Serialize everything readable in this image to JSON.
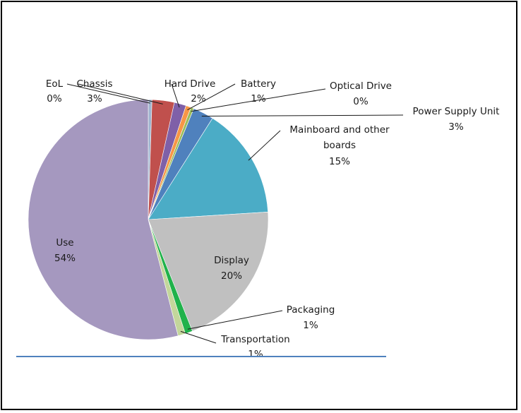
{
  "chart_data": {
    "type": "pie",
    "title": "",
    "slices": [
      {
        "name": "EoL",
        "value": 0.5,
        "pct_label": "0%",
        "color": "#9fb5cf"
      },
      {
        "name": "Chassis",
        "value": 3,
        "pct_label": "3%",
        "color": "#c0504d"
      },
      {
        "name": "Hard Drive",
        "value": 1.6,
        "pct_label": "2%",
        "color": "#7f60a8"
      },
      {
        "name": "Battery",
        "value": 0.7,
        "pct_label": "1%",
        "color": "#f79646"
      },
      {
        "name": "Optical Drive",
        "value": 0.4,
        "pct_label": "0%",
        "color": "#9bbb59"
      },
      {
        "name": "Power Supply Unit",
        "value": 2.8,
        "pct_label": "3%",
        "color": "#4f81bd"
      },
      {
        "name": "Mainboard and other boards",
        "value": 15,
        "pct_label": "15%",
        "color": "#4bacc6"
      },
      {
        "name": "Display",
        "value": 20,
        "pct_label": "20%",
        "color": "#c0c0c0"
      },
      {
        "name": "Packaging",
        "value": 1,
        "pct_label": "1%",
        "color": "#20b24b"
      },
      {
        "name": "Transportation",
        "value": 1,
        "pct_label": "1%",
        "color": "#c3d69b"
      },
      {
        "name": "Use",
        "value": 54,
        "pct_label": "54%",
        "color": "#a598bf"
      }
    ]
  }
}
